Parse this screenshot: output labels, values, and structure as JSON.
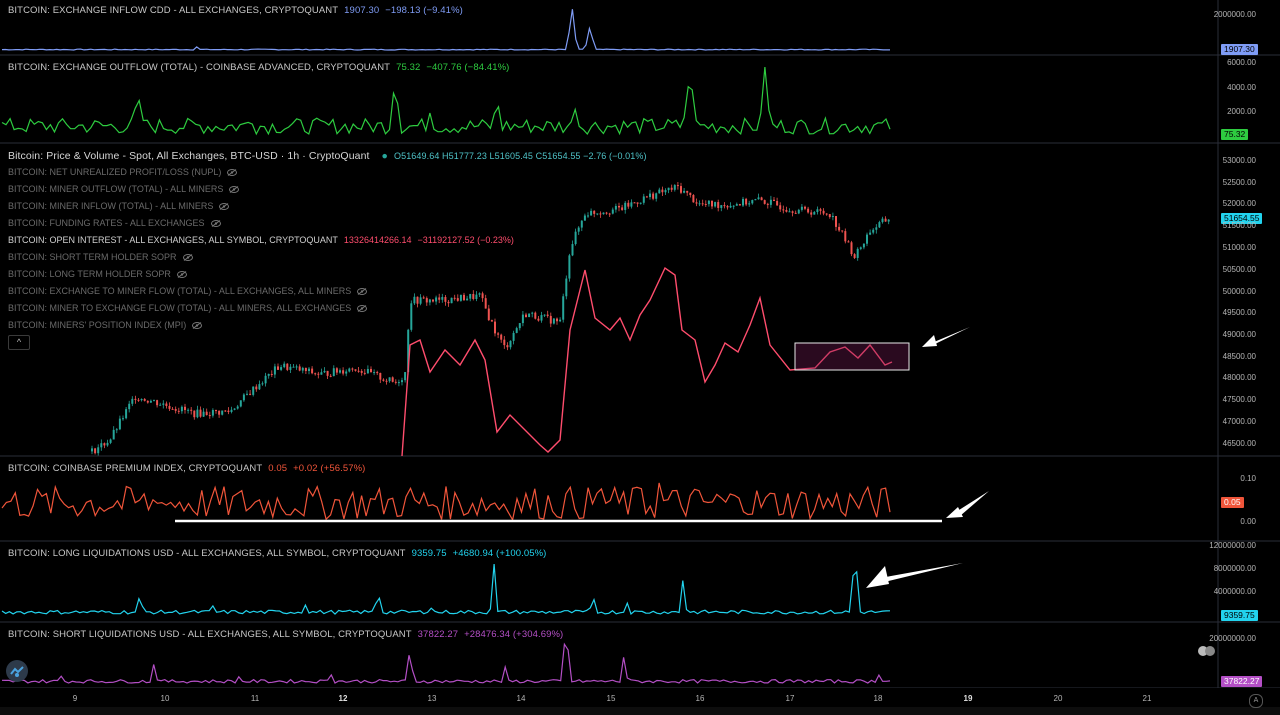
{
  "panes": {
    "inflow_cdd": {
      "title": "BITCOIN: EXCHANGE INFLOW CDD - ALL EXCHANGES, CRYPTOQUANT",
      "value": "1907.30",
      "change": "−198.13 (−9.41%)",
      "tag": "1907.30",
      "color": "#7f9cf5",
      "axis_labels": [
        "2000000.00"
      ]
    },
    "outflow": {
      "title": "BITCOIN: EXCHANGE OUTFLOW (TOTAL) - COINBASE ADVANCED, CRYPTOQUANT",
      "value": "75.32",
      "change": "−407.76 (−84.41%)",
      "tag": "75.32",
      "color": "#2ecc40",
      "axis_labels": [
        "6000.00",
        "4000.00",
        "2000.00"
      ]
    },
    "price": {
      "title": "Bitcoin: Price & Volume - Spot, All Exchanges, BTC-USD · 1h · CryptoQuant",
      "ohlc": "O51649.64 H51777.23 L51605.45 C51654.55 −2.76 (−0.01%)",
      "tag": "51654.55",
      "axis_labels": [
        "53000.00",
        "52500.00",
        "52000.00",
        "51500.00",
        "51000.00",
        "50500.00",
        "50000.00",
        "49500.00",
        "49000.00",
        "48500.00",
        "48000.00",
        "47500.00",
        "47000.00",
        "46500.00"
      ],
      "indicators": [
        {
          "label": "BITCOIN: NET UNREALIZED PROFIT/LOSS (NUPL)",
          "active": false
        },
        {
          "label": "BITCOIN: MINER OUTFLOW (TOTAL) - ALL MINERS",
          "active": false
        },
        {
          "label": "BITCOIN: MINER INFLOW (TOTAL) - ALL MINERS",
          "active": false
        },
        {
          "label": "BITCOIN: FUNDING RATES - ALL EXCHANGES",
          "active": false
        },
        {
          "label": "BITCOIN: OPEN INTEREST - ALL EXCHANGES, ALL SYMBOL, CRYPTOQUANT",
          "active": true,
          "value": "13326414266.14",
          "change": "−31192127.52 (−0.23%)"
        },
        {
          "label": "BITCOIN: SHORT TERM HOLDER SOPR",
          "active": false
        },
        {
          "label": "BITCOIN: LONG TERM HOLDER SOPR",
          "active": false
        },
        {
          "label": "BITCOIN: EXCHANGE TO MINER FLOW (TOTAL) - ALL EXCHANGES, ALL MINERS",
          "active": false
        },
        {
          "label": "BITCOIN: MINER TO EXCHANGE FLOW (TOTAL) - ALL MINERS, ALL EXCHANGES",
          "active": false
        },
        {
          "label": "BITCOIN: MINERS' POSITION INDEX (MPI)",
          "active": false
        }
      ]
    },
    "premium": {
      "title": "BITCOIN: COINBASE PREMIUM INDEX, CRYPTOQUANT",
      "value": "0.05",
      "change": "+0.02 (+56.57%)",
      "tag": "0.05",
      "color": "#f0553a",
      "axis_labels": [
        "0.10",
        "0.00"
      ]
    },
    "long_liq": {
      "title": "BITCOIN: LONG LIQUIDATIONS USD - ALL EXCHANGES, ALL SYMBOL, CRYPTOQUANT",
      "value": "9359.75",
      "change": "+4680.94 (+100.05%)",
      "tag": "9359.75",
      "color": "#22d3ee",
      "axis_labels": [
        "12000000.00",
        "8000000.00",
        "4000000.00"
      ]
    },
    "short_liq": {
      "title": "BITCOIN: SHORT LIQUIDATIONS USD - ALL EXCHANGES, ALL SYMBOL, CRYPTOQUANT",
      "value": "37822.27",
      "change": "+28476.34 (+304.69%)",
      "tag": "37822.27",
      "color": "#b44fc6",
      "axis_labels": [
        "20000000.00"
      ]
    }
  },
  "x_axis": {
    "labels": [
      "9",
      "10",
      "11",
      "12",
      "13",
      "14",
      "15",
      "16",
      "17",
      "18",
      "19",
      "20",
      "21"
    ],
    "bold": [
      "12",
      "19"
    ]
  },
  "collapse_button": "^",
  "autoscale_button": "A",
  "chart_data": {
    "type": "line",
    "x": [
      "9",
      "10",
      "11",
      "12",
      "13",
      "14",
      "15",
      "16",
      "17",
      "18"
    ],
    "price_close": [
      46200,
      47400,
      48300,
      48200,
      49900,
      49600,
      52300,
      52200,
      51800,
      51650
    ],
    "open_interest_relative": [
      0.0,
      0.2,
      0.5,
      0.55,
      0.6,
      0.1,
      0.7,
      0.5,
      0.8,
      0.8
    ],
    "series": [
      {
        "name": "BITCOIN: EXCHANGE INFLOW CDD - ALL EXCHANGES, CRYPTOQUANT",
        "last": 1907.3
      },
      {
        "name": "BITCOIN: EXCHANGE OUTFLOW (TOTAL) - COINBASE ADVANCED, CRYPTOQUANT",
        "last": 75.32
      },
      {
        "name": "BITCOIN: COINBASE PREMIUM INDEX, CRYPTOQUANT",
        "last": 0.05
      },
      {
        "name": "BITCOIN: LONG LIQUIDATIONS USD - ALL EXCHANGES, ALL SYMBOL, CRYPTOQUANT",
        "last": 9359.75
      },
      {
        "name": "BITCOIN: SHORT LIQUIDATIONS USD - ALL EXCHANGES, ALL SYMBOL, CRYPTOQUANT",
        "last": 37822.27
      }
    ]
  }
}
